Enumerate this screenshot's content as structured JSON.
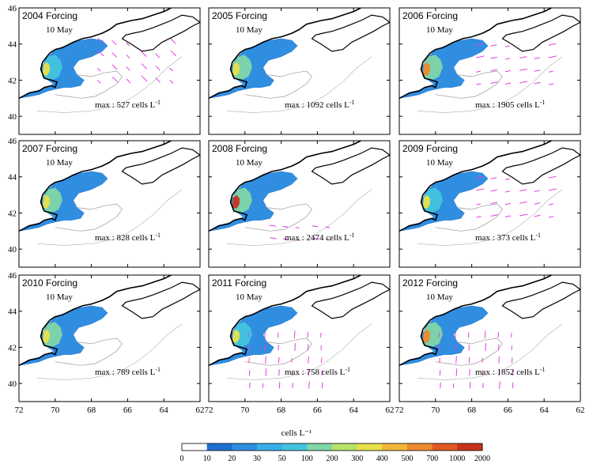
{
  "chart_data": {
    "type": "heatmap",
    "title": "",
    "xlabel": "cells L⁻¹",
    "ylabel": "",
    "xlim": [
      72,
      62
    ],
    "ylim": [
      39,
      46
    ],
    "x_ticks": [
      "72",
      "70",
      "68",
      "66",
      "64",
      "62"
    ],
    "y_ticks": [
      "40",
      "42",
      "44",
      "46"
    ],
    "date_label": "10 May",
    "max_prefix": "max : ",
    "max_unit": " cells L",
    "max_unit_sup": "-1",
    "panels": [
      {
        "title": "2004 Forcing",
        "max": 527,
        "intensity": 0.4,
        "arrows": "ne"
      },
      {
        "title": "2005 Forcing",
        "max": 1092,
        "intensity": 0.55,
        "arrows": "none"
      },
      {
        "title": "2006 Forcing",
        "max": 1905,
        "intensity": 0.75,
        "arrows": "e"
      },
      {
        "title": "2007 Forcing",
        "max": 828,
        "intensity": 0.55,
        "arrows": "none"
      },
      {
        "title": "2008 Forcing",
        "max": 2474,
        "intensity": 0.95,
        "arrows": "sw"
      },
      {
        "title": "2009 Forcing",
        "max": 373,
        "intensity": 0.3,
        "arrows": "e"
      },
      {
        "title": "2010 Forcing",
        "max": 789,
        "intensity": 0.55,
        "arrows": "none"
      },
      {
        "title": "2011 Forcing",
        "max": 758,
        "intensity": 0.5,
        "arrows": "s"
      },
      {
        "title": "2012 Forcing",
        "max": 1852,
        "intensity": 0.75,
        "arrows": "s"
      }
    ],
    "colorbar": {
      "ticks": [
        "0",
        "10",
        "20",
        "30",
        "50",
        "100",
        "200",
        "300",
        "400",
        "500",
        "700",
        "1000",
        "2000"
      ],
      "colors": [
        "#ffffff",
        "#1f6fd0",
        "#2f8ee0",
        "#3aaee8",
        "#43c4de",
        "#7fd6a8",
        "#b8e26a",
        "#e8e04a",
        "#f3b83a",
        "#ee8a2e",
        "#e05a24",
        "#c8321c"
      ]
    }
  }
}
